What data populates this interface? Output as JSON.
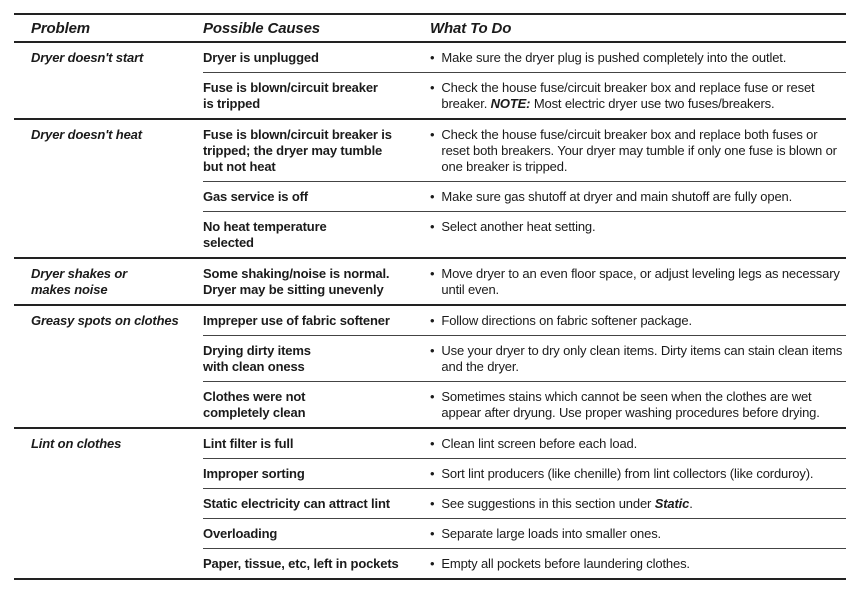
{
  "table": {
    "headers": {
      "problem": "Problem",
      "causes": "Possible Causes",
      "what_to_do": "What To Do"
    },
    "groups": [
      {
        "problem": "Dryer doesn't start",
        "rows": [
          {
            "cause": "Dryer is unplugged",
            "action": [
              {
                "text": "Make sure the dryer plug is pushed completely into the outlet.",
                "style": "normal"
              }
            ]
          },
          {
            "cause": "Fuse is blown/circuit breaker\nis tripped",
            "action": [
              {
                "text": "Check the house fuse/circuit breaker box and replace fuse or reset breaker. ",
                "style": "normal"
              },
              {
                "text": "NOTE:",
                "style": "bold-italic"
              },
              {
                "text": " Most electric dryer use two fuses/breakers.",
                "style": "normal"
              }
            ]
          }
        ]
      },
      {
        "problem": "Dryer doesn't heat",
        "rows": [
          {
            "cause": "Fuse is blown/circuit breaker is\ntripped; the dryer may tumble\nbut not heat",
            "action": [
              {
                "text": "Check the house fuse/circuit breaker box and replace both fuses or reset both breakers. Your dryer may tumble if only one fuse is blown or one breaker is tripped.",
                "style": "normal"
              }
            ]
          },
          {
            "cause": "Gas service is off",
            "action": [
              {
                "text": "Make sure gas shutoff at dryer and main shutoff are fully open.",
                "style": "normal"
              }
            ]
          },
          {
            "cause": "No heat temperature\nselected",
            "action": [
              {
                "text": " Select another heat setting.",
                "style": "normal"
              }
            ]
          }
        ]
      },
      {
        "problem": "Dryer shakes or\nmakes noise",
        "rows": [
          {
            "cause": "Some shaking/noise is normal.\nDryer may be sitting unevenly",
            "action": [
              {
                "text": "Move dryer to an even floor space, or adjust leveling legs as necessary until even.",
                "style": "normal"
              }
            ]
          }
        ]
      },
      {
        "problem": "Greasy spots on clothes",
        "rows": [
          {
            "cause": "Impreper use of fabric softener",
            "action": [
              {
                "text": "Follow directions on fabric softener package.",
                "style": "normal"
              }
            ]
          },
          {
            "cause": "Drying dirty items\nwith clean oness",
            "action": [
              {
                "text": "Use your dryer to dry only clean items. Dirty items can stain clean items and the dryer.",
                "style": "normal"
              }
            ]
          },
          {
            "cause": "Clothes were not\ncompletely clean",
            "action": [
              {
                "text": "Sometimes stains which cannot be seen when the clothes are wet appear after dryung. Use proper washing procedures before drying.",
                "style": "normal"
              }
            ]
          }
        ]
      },
      {
        "problem": "Lint on clothes",
        "rows": [
          {
            "cause": "Lint filter is full",
            "action": [
              {
                "text": "Clean lint screen before each load.",
                "style": "normal"
              }
            ]
          },
          {
            "cause": "Improper sorting",
            "action": [
              {
                "text": "Sort lint producers (like chenille) from lint collectors (like corduroy).",
                "style": "normal"
              }
            ]
          },
          {
            "cause": "Static electricity can attract lint",
            "action": [
              {
                "text": "See suggestions in this section under ",
                "style": "normal"
              },
              {
                "text": "Static",
                "style": "bold-italic"
              },
              {
                "text": ".",
                "style": "normal"
              }
            ]
          },
          {
            "cause": "Overloading",
            "action": [
              {
                "text": "Separate large loads into smaller ones.",
                "style": "normal"
              }
            ]
          },
          {
            "cause": "Paper, tissue, etc, left in pockets",
            "action": [
              {
                "text": "Empty all pockets before laundering clothes.",
                "style": "normal"
              }
            ]
          }
        ]
      }
    ]
  }
}
